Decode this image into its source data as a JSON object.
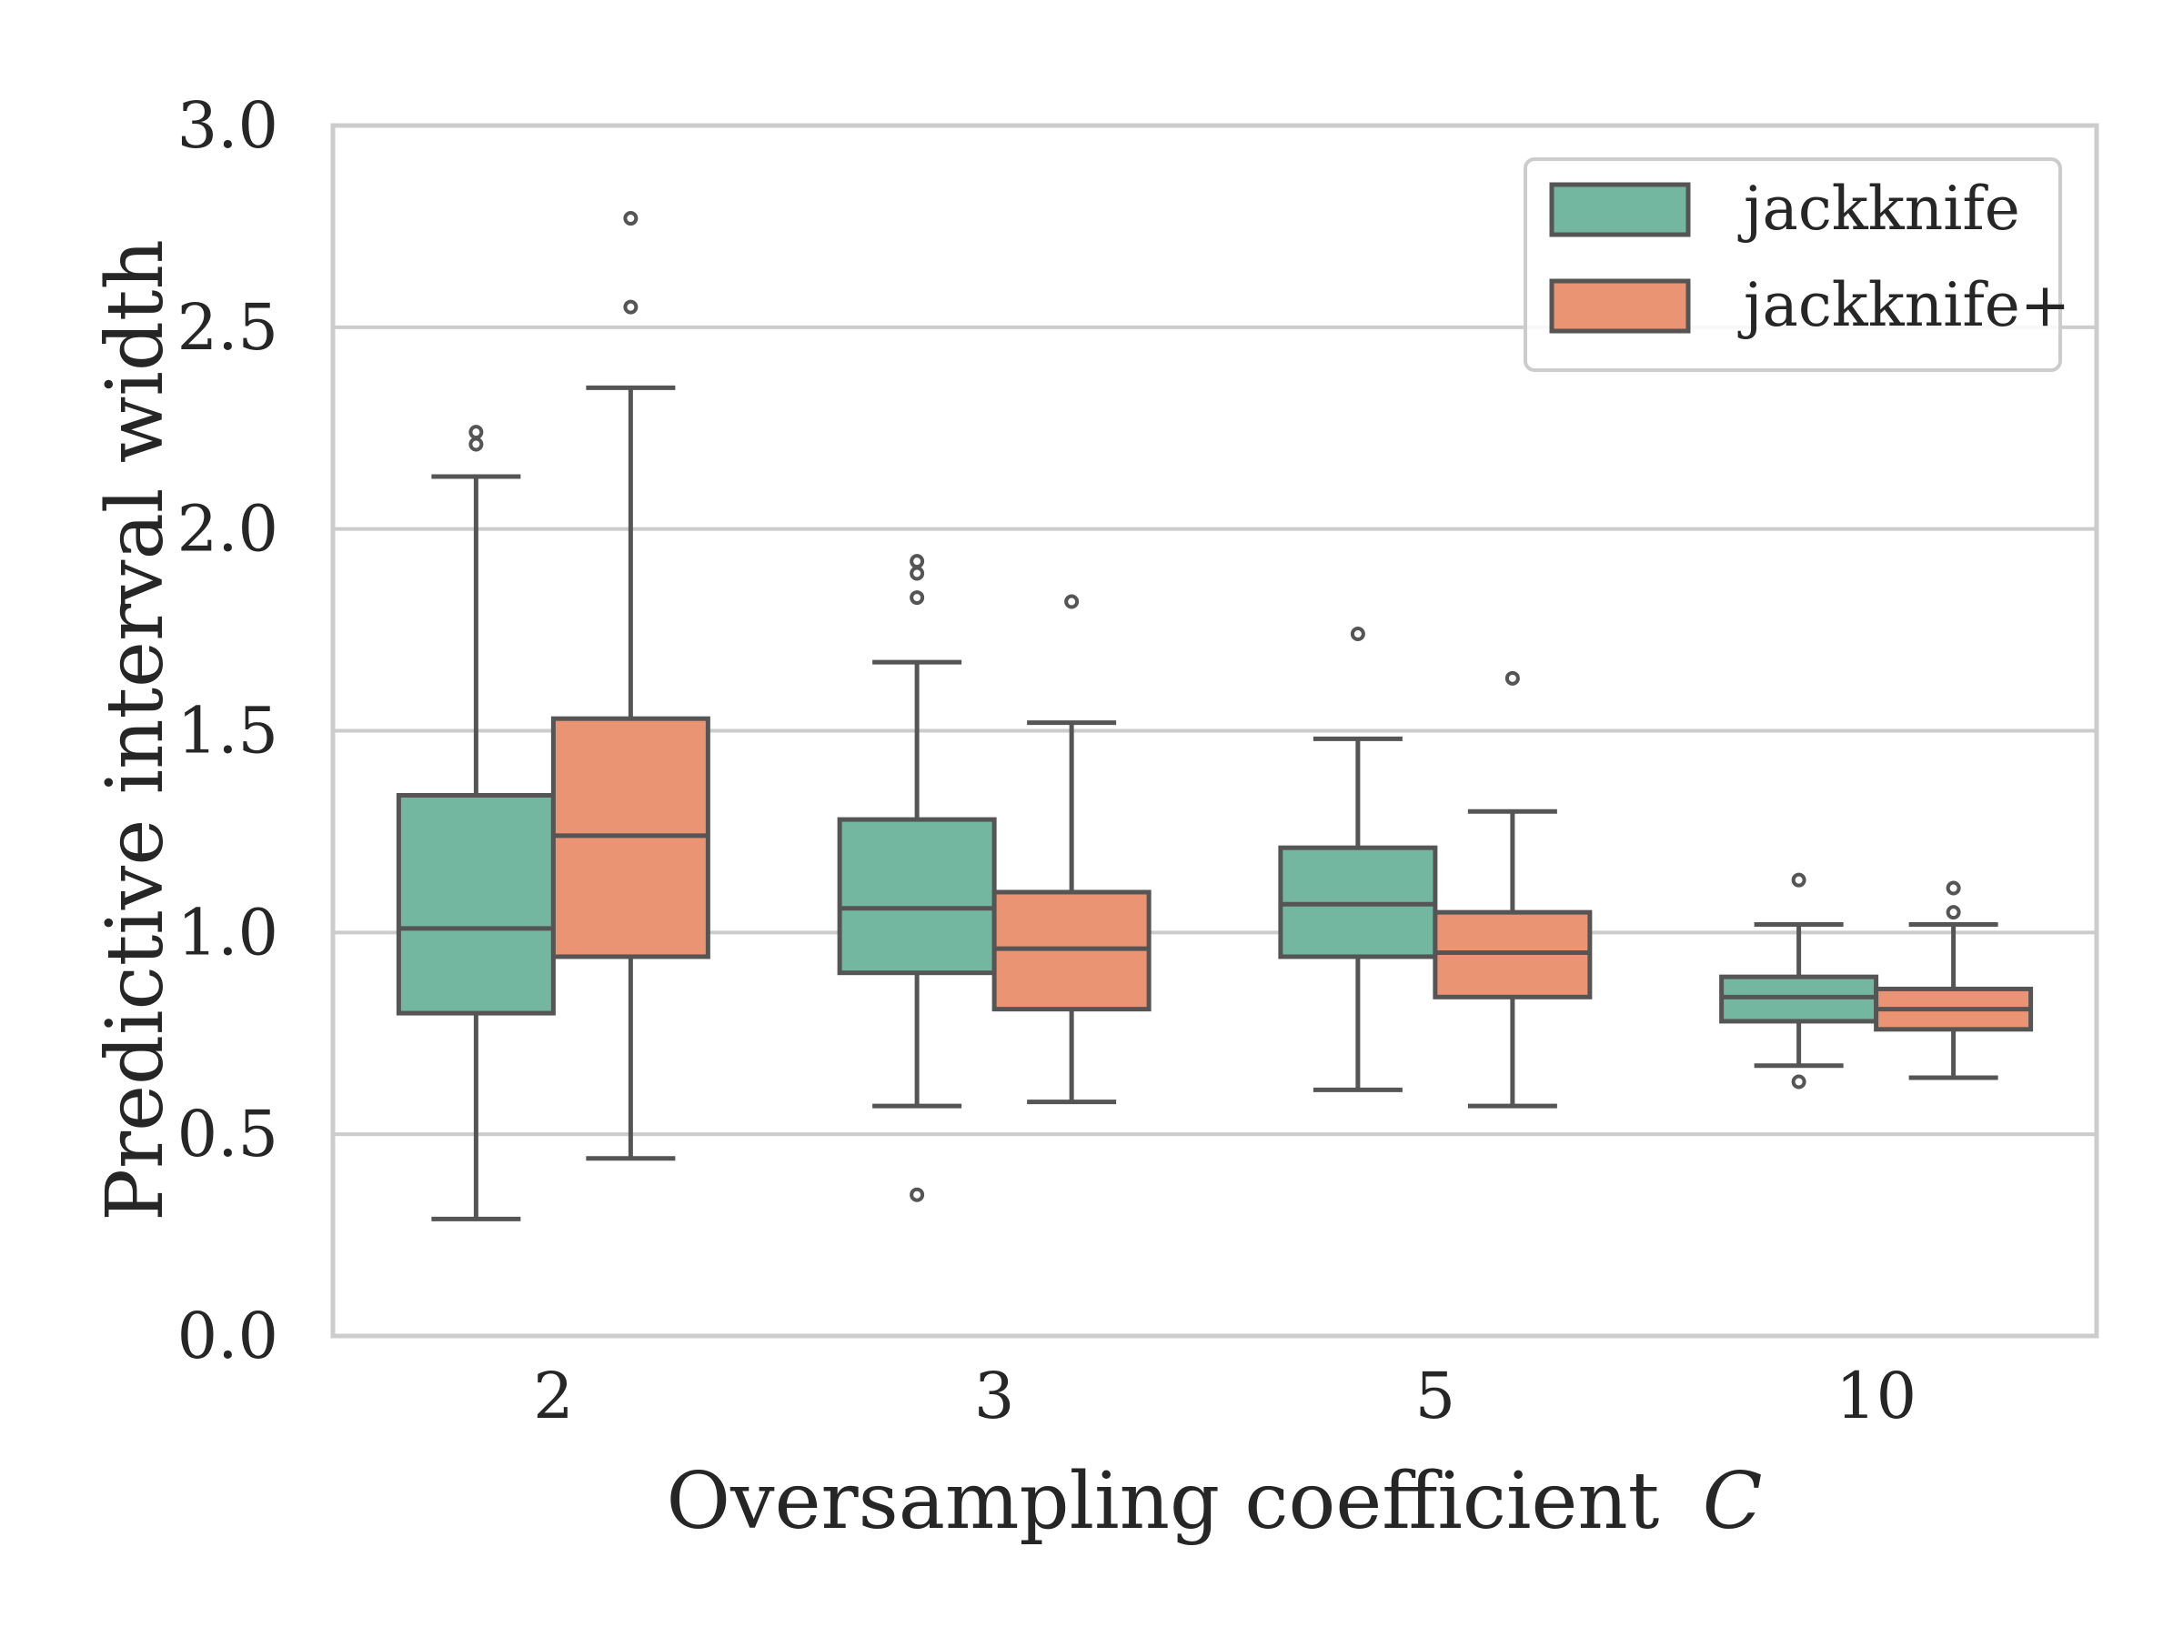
{
  "chart_data": {
    "type": "box",
    "title": "",
    "xlabel": "Oversampling coefficient",
    "xlabel_var": "C",
    "ylabel": "Predictive interval width",
    "ylim": [
      0,
      3
    ],
    "yticks": [
      "0.0",
      "0.5",
      "1.0",
      "1.5",
      "2.0",
      "2.5",
      "3.0"
    ],
    "ytick_values": [
      0,
      0.5,
      1.0,
      1.5,
      2.0,
      2.5,
      3.0
    ],
    "categories": [
      "2",
      "3",
      "5",
      "10"
    ],
    "grid": "horizontal",
    "legend_position": "top-right",
    "series": [
      {
        "name": "jackknife",
        "color": "#74b7a0",
        "boxes": [
          {
            "whislo": 0.29,
            "q1": 0.8,
            "med": 1.01,
            "q3": 1.34,
            "whishi": 2.13,
            "fliers": [
              2.21,
              2.24
            ]
          },
          {
            "whislo": 0.57,
            "q1": 0.9,
            "med": 1.06,
            "q3": 1.28,
            "whishi": 1.67,
            "fliers": [
              1.83,
              1.89,
              1.92,
              0.35
            ]
          },
          {
            "whislo": 0.61,
            "q1": 0.94,
            "med": 1.07,
            "q3": 1.21,
            "whishi": 1.48,
            "fliers": [
              1.74
            ]
          },
          {
            "whislo": 0.67,
            "q1": 0.78,
            "med": 0.84,
            "q3": 0.89,
            "whishi": 1.02,
            "fliers": [
              1.13,
              0.63
            ]
          }
        ]
      },
      {
        "name": "jackknife+",
        "color": "#ea9473",
        "boxes": [
          {
            "whislo": 0.44,
            "q1": 0.94,
            "med": 1.24,
            "q3": 1.53,
            "whishi": 2.35,
            "fliers": [
              2.55,
              2.77
            ]
          },
          {
            "whislo": 0.58,
            "q1": 0.81,
            "med": 0.96,
            "q3": 1.1,
            "whishi": 1.52,
            "fliers": [
              1.82
            ]
          },
          {
            "whislo": 0.57,
            "q1": 0.84,
            "med": 0.95,
            "q3": 1.05,
            "whishi": 1.3,
            "fliers": [
              1.63
            ]
          },
          {
            "whislo": 0.64,
            "q1": 0.76,
            "med": 0.81,
            "q3": 0.86,
            "whishi": 1.02,
            "fliers": [
              1.05,
              1.11
            ]
          }
        ]
      }
    ],
    "colors": {
      "line": "#555555",
      "grid": "#cccccc",
      "frame": "#cccccc"
    }
  }
}
